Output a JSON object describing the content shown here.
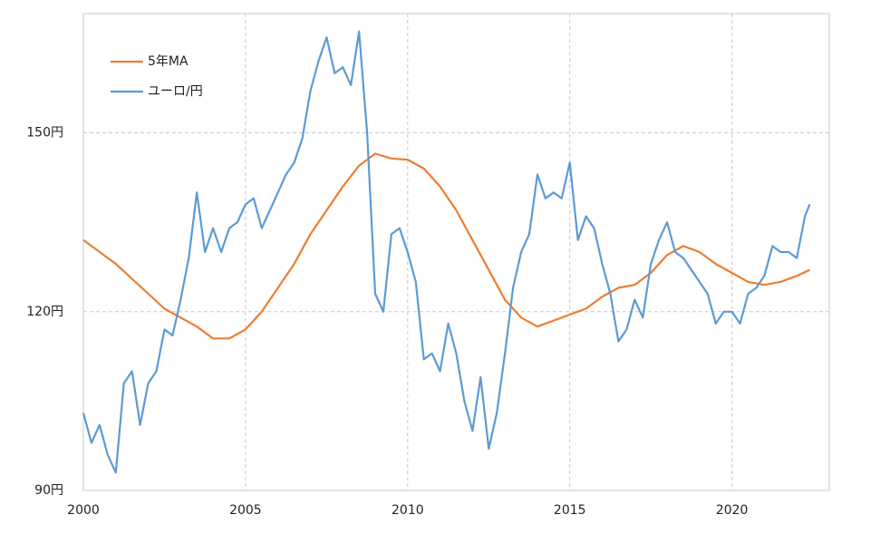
{
  "chart_data": {
    "type": "line",
    "xlim": [
      2000,
      2023
    ],
    "xticks": [
      2000,
      2005,
      2010,
      2015,
      2020
    ],
    "ylim": [
      90,
      170
    ],
    "yticks": [
      {
        "value": 90,
        "label": "90円"
      },
      {
        "value": 120,
        "label": "120円"
      },
      {
        "value": 150,
        "label": "150円"
      }
    ],
    "grid": true,
    "legend": "upper left",
    "series": [
      {
        "name": "5年MA",
        "color": "#ed7d31",
        "x": [
          2000,
          2001,
          2002,
          2002.5,
          2003,
          2003.5,
          2004,
          2004.5,
          2005,
          2005.5,
          2006,
          2006.5,
          2007,
          2007.5,
          2008,
          2008.5,
          2009,
          2009.5,
          2010,
          2010.5,
          2011,
          2011.5,
          2012,
          2012.5,
          2013,
          2013.5,
          2014,
          2014.5,
          2015,
          2015.5,
          2016,
          2016.5,
          2017,
          2017.5,
          2018,
          2018.5,
          2019,
          2019.5,
          2020,
          2020.5,
          2021,
          2021.5,
          2022,
          2022.4
        ],
        "values": [
          132,
          128,
          123,
          120.5,
          119,
          117.5,
          115.5,
          115.5,
          117,
          120,
          124,
          128,
          133,
          137,
          141,
          144.5,
          146.5,
          145.7,
          145.5,
          144,
          141,
          137,
          132,
          127,
          122,
          119,
          117.5,
          118.5,
          119.5,
          120.5,
          122.5,
          124,
          124.5,
          126.5,
          129.5,
          131,
          130,
          128,
          126.5,
          125,
          124.5,
          125,
          126,
          127
        ]
      },
      {
        "name": "ユーロ/円",
        "color": "#5b9bd5",
        "x": [
          2000,
          2000.25,
          2000.5,
          2000.75,
          2001,
          2001.25,
          2001.5,
          2001.75,
          2002,
          2002.25,
          2002.5,
          2002.75,
          2003,
          2003.25,
          2003.5,
          2003.75,
          2004,
          2004.25,
          2004.5,
          2004.75,
          2005,
          2005.25,
          2005.5,
          2005.75,
          2006,
          2006.25,
          2006.5,
          2006.75,
          2007,
          2007.25,
          2007.5,
          2007.75,
          2008,
          2008.25,
          2008.5,
          2008.75,
          2009,
          2009.25,
          2009.5,
          2009.75,
          2010,
          2010.25,
          2010.5,
          2010.75,
          2011,
          2011.25,
          2011.5,
          2011.75,
          2012,
          2012.25,
          2012.5,
          2012.75,
          2013,
          2013.25,
          2013.5,
          2013.75,
          2014,
          2014.25,
          2014.5,
          2014.75,
          2015,
          2015.25,
          2015.5,
          2015.75,
          2016,
          2016.25,
          2016.5,
          2016.75,
          2017,
          2017.25,
          2017.5,
          2017.75,
          2018,
          2018.25,
          2018.5,
          2018.75,
          2019,
          2019.25,
          2019.5,
          2019.75,
          2020,
          2020.25,
          2020.5,
          2020.75,
          2021,
          2021.25,
          2021.5,
          2021.75,
          2022,
          2022.25,
          2022.4
        ],
        "values": [
          103,
          98,
          101,
          96,
          93,
          108,
          110,
          101,
          108,
          110,
          117,
          116,
          122,
          129,
          140,
          130,
          134,
          130,
          134,
          135,
          138,
          139,
          134,
          137,
          140,
          143,
          145,
          149,
          157,
          162,
          166,
          160,
          161,
          158,
          167,
          150,
          123,
          120,
          133,
          134,
          130,
          125,
          112,
          113,
          110,
          118,
          113,
          105,
          100,
          109,
          97,
          103,
          113,
          124,
          130,
          133,
          143,
          139,
          140,
          139,
          145,
          132,
          136,
          134,
          128,
          123,
          115,
          117,
          122,
          119,
          128,
          132,
          135,
          130,
          129,
          127,
          125,
          123,
          118,
          120,
          120,
          118,
          123,
          124,
          126,
          131,
          130,
          130,
          129,
          136,
          138
        ]
      }
    ]
  }
}
